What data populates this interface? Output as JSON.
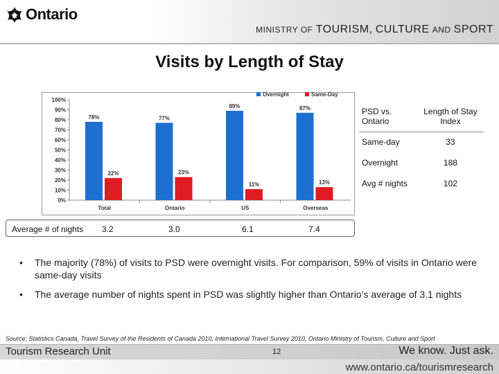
{
  "header": {
    "logo_text": "Ontario",
    "ministry_prefix": "MINISTRY OF",
    "ministry_part1": "TOURISM",
    "ministry_sep": ",",
    "ministry_part2": "CULTURE",
    "ministry_and": "AND",
    "ministry_part3": "SPORT"
  },
  "title": "Visits by Length of Stay",
  "chart_data": {
    "type": "bar",
    "categories": [
      "Total",
      "Ontario",
      "US",
      "Overseas"
    ],
    "series": [
      {
        "name": "Overnight",
        "values": [
          78,
          77,
          89,
          87
        ],
        "labels": [
          "78%",
          "77%",
          "89%",
          "87%"
        ],
        "color": "#1f6fd1"
      },
      {
        "name": "Same-Day",
        "values": [
          22,
          23,
          11,
          13
        ],
        "labels": [
          "22%",
          "23%",
          "11%",
          "13%"
        ],
        "color": "#e01b24"
      }
    ],
    "y_ticks": [
      "0%",
      "10%",
      "20%",
      "30%",
      "40%",
      "50%",
      "60%",
      "70%",
      "80%",
      "90%",
      "100%"
    ],
    "ylim": [
      0,
      100
    ],
    "legend_position": "top-right",
    "grid": false
  },
  "avg_nights": {
    "label": "Average # of nights",
    "values": [
      "3.2",
      "3.0",
      "6.1",
      "7.4"
    ]
  },
  "index_table": {
    "headers": [
      "PSD vs. Ontario",
      "Length of Stay Index"
    ],
    "rows": [
      [
        "Same-day",
        "33"
      ],
      [
        "Overnight",
        "188"
      ],
      [
        "Avg # nights",
        "102"
      ]
    ]
  },
  "bullets": [
    "The majority (78%) of visits to PSD were overnight visits.  For comparison, 59% of visits in Ontario were same-day visits",
    "The average number of nights spent in PSD was slightly higher than Ontario’s average of 3.1 nights"
  ],
  "bullet_symbol": "•",
  "source": "Source: Statistics Canada, Travel Survey of the Residents of Canada 2010, International Travel Survey 2010, Ontario Ministry of Tourism, Culture and Sport",
  "footer": {
    "unit": "Tourism Research Unit",
    "page": "12",
    "tagline": "We know. Just ask.",
    "url": "www.ontario.ca/tourismresearch"
  }
}
